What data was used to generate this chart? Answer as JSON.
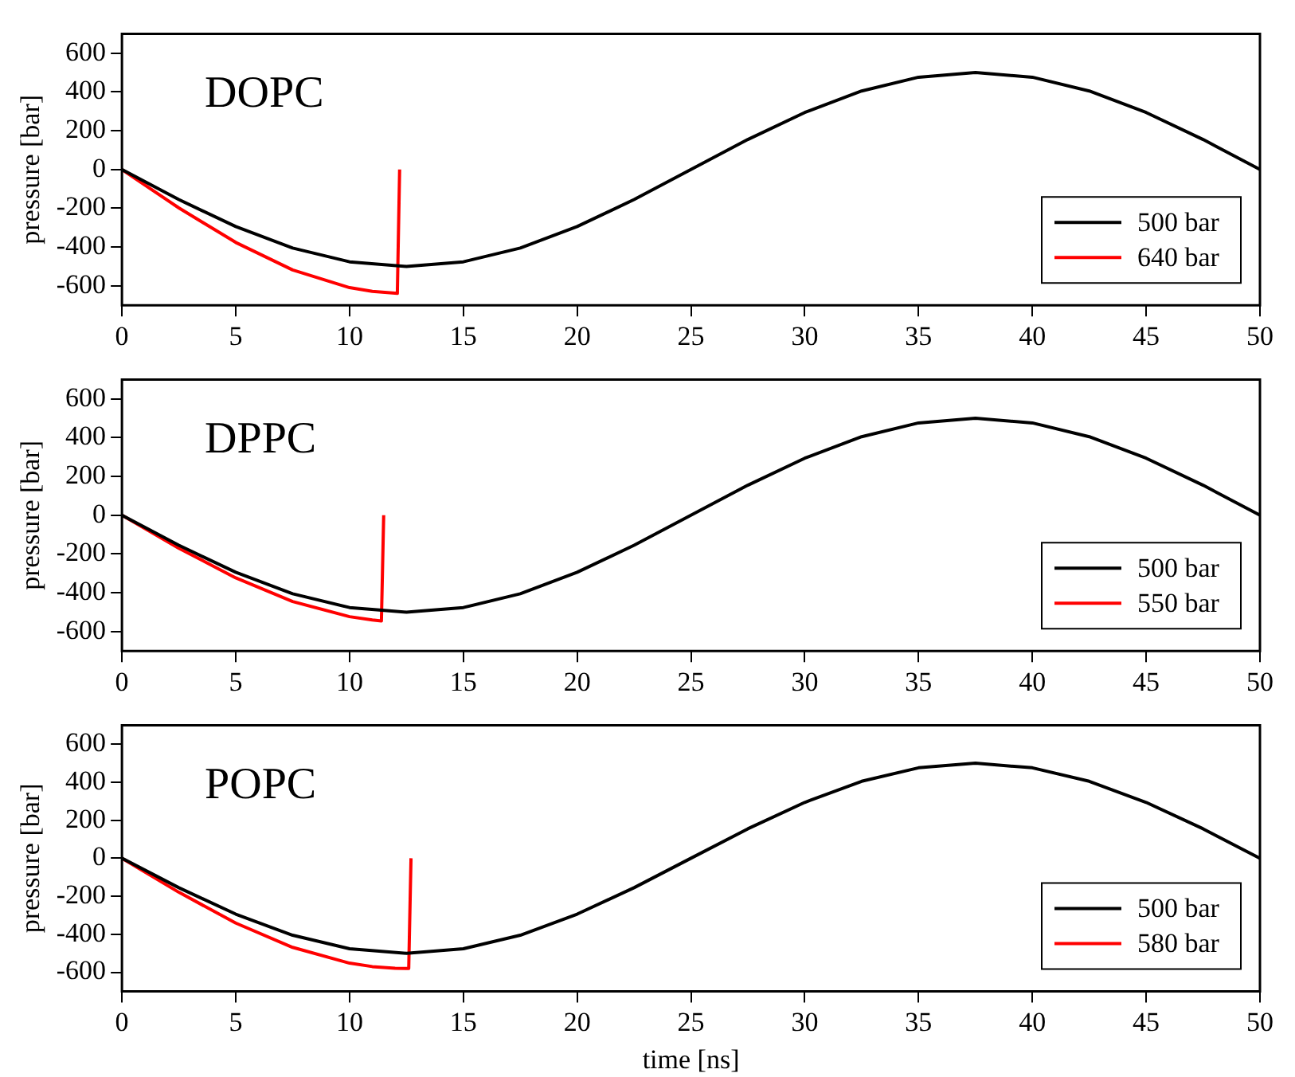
{
  "chart_data": [
    {
      "type": "line",
      "annotations": [
        "DOPC"
      ],
      "ylabel": "pressure [bar]",
      "xlim": [
        0,
        50
      ],
      "xticks": [
        0,
        5,
        10,
        15,
        20,
        25,
        30,
        35,
        40,
        45,
        50
      ],
      "ylim": [
        -700,
        700
      ],
      "yticks": [
        -600,
        -400,
        -200,
        0,
        200,
        400,
        600
      ],
      "legend": "bottom right",
      "grid": false,
      "marker": "none",
      "series": [
        {
          "name": "500 bar",
          "color": "#000000",
          "x": [
            0,
            2.5,
            5,
            7.5,
            10,
            12.5,
            15,
            17.5,
            20,
            22.5,
            25,
            27.5,
            30,
            32.5,
            35,
            37.5,
            40,
            42.5,
            45,
            47.5,
            50
          ],
          "values": [
            0,
            -155,
            -294,
            -405,
            -476,
            -500,
            -476,
            -405,
            -294,
            -155,
            0,
            155,
            294,
            405,
            476,
            500,
            476,
            405,
            294,
            155,
            0
          ]
        },
        {
          "name": "640 bar",
          "color": "#ff0000",
          "x": [
            0,
            2.5,
            5,
            7.5,
            10,
            11,
            12.1,
            12.2
          ],
          "values": [
            0,
            -198,
            -376,
            -518,
            -609,
            -628,
            -639,
            0
          ]
        }
      ]
    },
    {
      "type": "line",
      "annotations": [
        "DPPC"
      ],
      "ylabel": "pressure [bar]",
      "xlim": [
        0,
        50
      ],
      "xticks": [
        0,
        5,
        10,
        15,
        20,
        25,
        30,
        35,
        40,
        45,
        50
      ],
      "ylim": [
        -700,
        700
      ],
      "yticks": [
        -600,
        -400,
        -200,
        0,
        200,
        400,
        600
      ],
      "legend": "bottom right",
      "grid": false,
      "marker": "none",
      "series": [
        {
          "name": "500 bar",
          "color": "#000000",
          "x": [
            0,
            2.5,
            5,
            7.5,
            10,
            12.5,
            15,
            17.5,
            20,
            22.5,
            25,
            27.5,
            30,
            32.5,
            35,
            37.5,
            40,
            42.5,
            45,
            47.5,
            50
          ],
          "values": [
            0,
            -155,
            -294,
            -405,
            -476,
            -500,
            -476,
            -405,
            -294,
            -155,
            0,
            155,
            294,
            405,
            476,
            500,
            476,
            405,
            294,
            155,
            0
          ]
        },
        {
          "name": "550 bar",
          "color": "#ff0000",
          "x": [
            0,
            2.5,
            5,
            7.5,
            10,
            11,
            11.4,
            11.5
          ],
          "values": [
            0,
            -170,
            -323,
            -445,
            -523,
            -540,
            -545,
            0
          ]
        }
      ]
    },
    {
      "type": "line",
      "annotations": [
        "POPC"
      ],
      "xlabel": "time [ns]",
      "ylabel": "pressure [bar]",
      "xlim": [
        0,
        50
      ],
      "xticks": [
        0,
        5,
        10,
        15,
        20,
        25,
        30,
        35,
        40,
        45,
        50
      ],
      "ylim": [
        -700,
        700
      ],
      "yticks": [
        -600,
        -400,
        -200,
        0,
        200,
        400,
        600
      ],
      "legend": "bottom right",
      "grid": false,
      "marker": "none",
      "series": [
        {
          "name": "500 bar",
          "color": "#000000",
          "x": [
            0,
            2.5,
            5,
            7.5,
            10,
            12.5,
            15,
            17.5,
            20,
            22.5,
            25,
            27.5,
            30,
            32.5,
            35,
            37.5,
            40,
            42.5,
            45,
            47.5,
            50
          ],
          "values": [
            0,
            -155,
            -294,
            -405,
            -476,
            -500,
            -476,
            -405,
            -294,
            -155,
            0,
            155,
            294,
            405,
            476,
            500,
            476,
            405,
            294,
            155,
            0
          ]
        },
        {
          "name": "580 bar",
          "color": "#ff0000",
          "x": [
            0,
            2.5,
            5,
            7.5,
            10,
            11,
            12,
            12.6,
            12.7
          ],
          "values": [
            0,
            -179,
            -341,
            -469,
            -552,
            -570,
            -579,
            -580,
            0
          ]
        }
      ]
    }
  ]
}
